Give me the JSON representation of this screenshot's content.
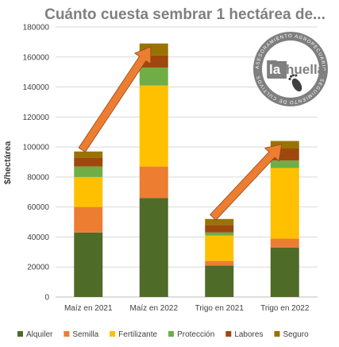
{
  "chart_data": {
    "type": "bar",
    "stacked": true,
    "title": "Cuánto cuesta sembrar 1 hectárea de...",
    "ylabel": "$/hectárea",
    "xlabel": "",
    "ylim": [
      0,
      180000
    ],
    "yticks": [
      0,
      20000,
      40000,
      60000,
      80000,
      100000,
      120000,
      140000,
      160000,
      180000
    ],
    "grid": true,
    "legend_position": "bottom",
    "categories": [
      "Maíz en 2021",
      "Maíz en 2022",
      "Trigo en 2021",
      "Trigo en 2022"
    ],
    "series": [
      {
        "name": "Alquiler",
        "color": "#4e6b28",
        "values": [
          43000,
          66000,
          21000,
          33000
        ]
      },
      {
        "name": "Semilla",
        "color": "#ed7d31",
        "values": [
          17000,
          21000,
          3000,
          6000
        ]
      },
      {
        "name": "Fertilizante",
        "color": "#ffc000",
        "values": [
          20000,
          54000,
          17000,
          47000
        ]
      },
      {
        "name": "Protección",
        "color": "#70ad47",
        "values": [
          7000,
          12000,
          2000,
          5000
        ]
      },
      {
        "name": "Labores",
        "color": "#9e480e",
        "values": [
          6000,
          8000,
          5000,
          8000
        ]
      },
      {
        "name": "Seguro",
        "color": "#997300",
        "values": [
          4000,
          8000,
          4000,
          5000
        ]
      }
    ],
    "annotations": [
      {
        "type": "arrow",
        "color": "#ed7d31",
        "from_category": "Maíz en 2021",
        "to_category": "Maíz en 2022"
      },
      {
        "type": "arrow",
        "color": "#ed7d31",
        "from_category": "Trigo en 2021",
        "to_category": "Trigo en 2022"
      }
    ]
  },
  "logo": {
    "word_part1": "la",
    "word_part2": "huella",
    "ring_text": "ASESORAMIENTO AGROPECUARIO · SEGUIMIENTO DE CULTIVOS ·",
    "icon": "footprint-icon",
    "ring_color": "#7f7f7f"
  }
}
